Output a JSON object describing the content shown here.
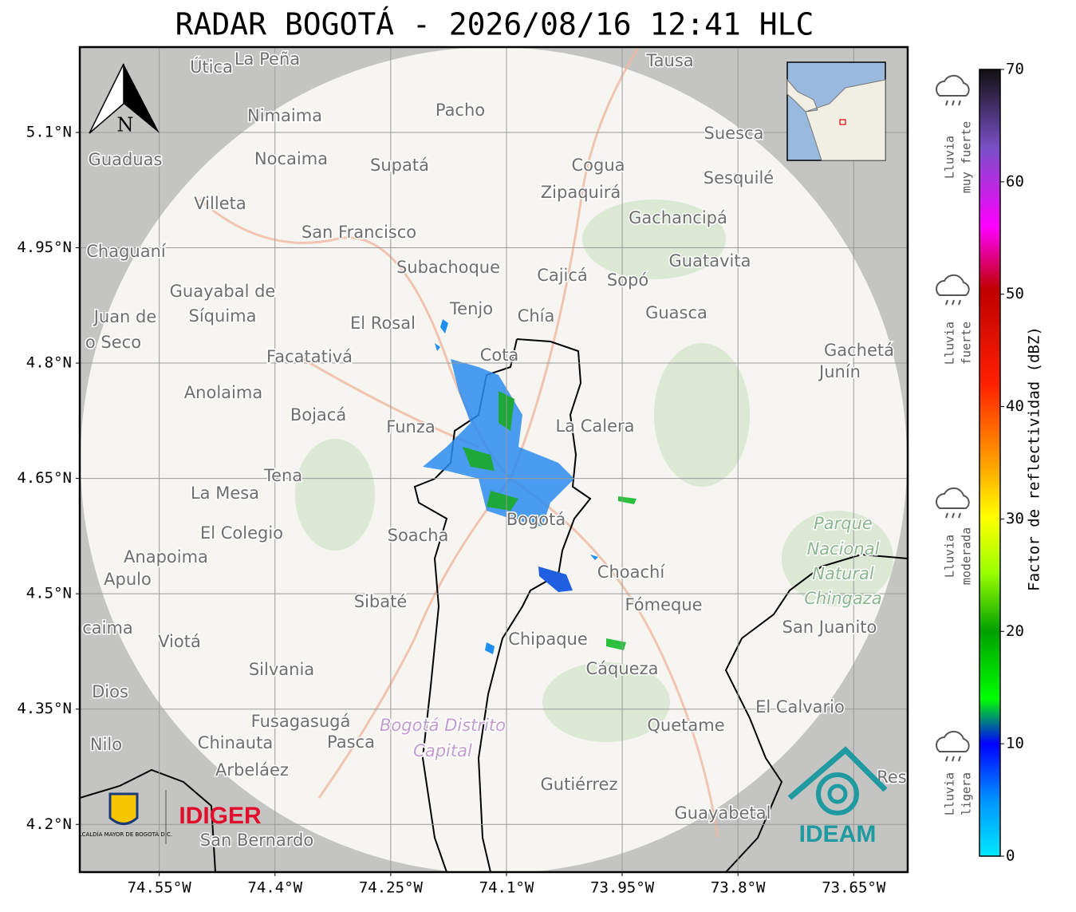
{
  "title": "RADAR BOGOTÁ - 2026/08/16 12:41 HLC",
  "map": {
    "xlim": [
      -74.653,
      -73.58
    ],
    "ylim": [
      4.138,
      5.211
    ],
    "xticks": [
      {
        "value": -74.55,
        "label": "74.55°W"
      },
      {
        "value": -74.4,
        "label": "74.4°W"
      },
      {
        "value": -74.25,
        "label": "74.25°W"
      },
      {
        "value": -74.1,
        "label": "74.1°W"
      },
      {
        "value": -73.95,
        "label": "73.95°W"
      },
      {
        "value": -73.8,
        "label": "73.8°W"
      },
      {
        "value": -73.65,
        "label": "73.65°W"
      }
    ],
    "yticks": [
      {
        "value": 5.1,
        "label": "5.1°N"
      },
      {
        "value": 4.95,
        "label": "4.95°N"
      },
      {
        "value": 4.8,
        "label": "4.8°N"
      },
      {
        "value": 4.65,
        "label": "4.65°N"
      },
      {
        "value": 4.5,
        "label": "4.5°N"
      },
      {
        "value": 4.35,
        "label": "4.35°N"
      },
      {
        "value": 4.2,
        "label": "4.2°N"
      }
    ],
    "north": "N",
    "places": [
      "Útica",
      "La Peña",
      "Tausa",
      "Pacho",
      "Nimaima",
      "Suesca",
      "Guaduas",
      "Nocaima",
      "Supatá",
      "Cogua",
      "Sesquilé",
      "Zipaquirá",
      "Villeta",
      "Gachancipá",
      "San Francisco",
      "Chaguaní",
      "Guatavita",
      "Subachoque",
      "Cajicá",
      "Sopó",
      "Guayabal de",
      "Síquima",
      "Tenjo",
      "Chía",
      "Guasca",
      "Juan de",
      "o Seco",
      "El Rosal",
      "Facatativá",
      "Cota",
      "Gachetá",
      "Junín",
      "Anolaima",
      "Bojacá",
      "Funza",
      "La Calera",
      "Tena",
      "La Mesa",
      "Soacha",
      "Bogotá",
      "El Colegio",
      "Parque",
      "Nacional",
      "Natural",
      "Chingaza",
      "Anapoima",
      "Apulo",
      "Choachí",
      "Sibaté",
      "Fómeque",
      "San Juanito",
      "caima",
      "Viotá",
      "Chipaque",
      "Cáqueza",
      "Silvania",
      "Dios",
      "El Calvario",
      "Fusagasugá",
      "Quetame",
      "Bogotá Distrito",
      "Capital",
      "Nilo",
      "Chinauta",
      "Pasca",
      "Arbeláez",
      "Gutiérrez",
      "Res",
      "Guayabetal",
      "San Bernardo"
    ],
    "logos": {
      "alcaldia": "ALCALDÍA MAYOR DE BOGOTÁ D.C.",
      "idiger": "IDIGER",
      "ideam": "IDEAM"
    }
  },
  "colorbar": {
    "label": "Factor de reflectividad (dBZ)",
    "lim": [
      0,
      70
    ],
    "ticks": [
      0,
      10,
      20,
      30,
      40,
      50,
      60,
      70
    ]
  },
  "categories": [
    [
      "Lluvia",
      "muy fuerte"
    ],
    [
      "Lluvia",
      "fuerte"
    ],
    [
      "Lluvia",
      "moderada"
    ],
    [
      "Lluvia",
      "ligera"
    ]
  ]
}
